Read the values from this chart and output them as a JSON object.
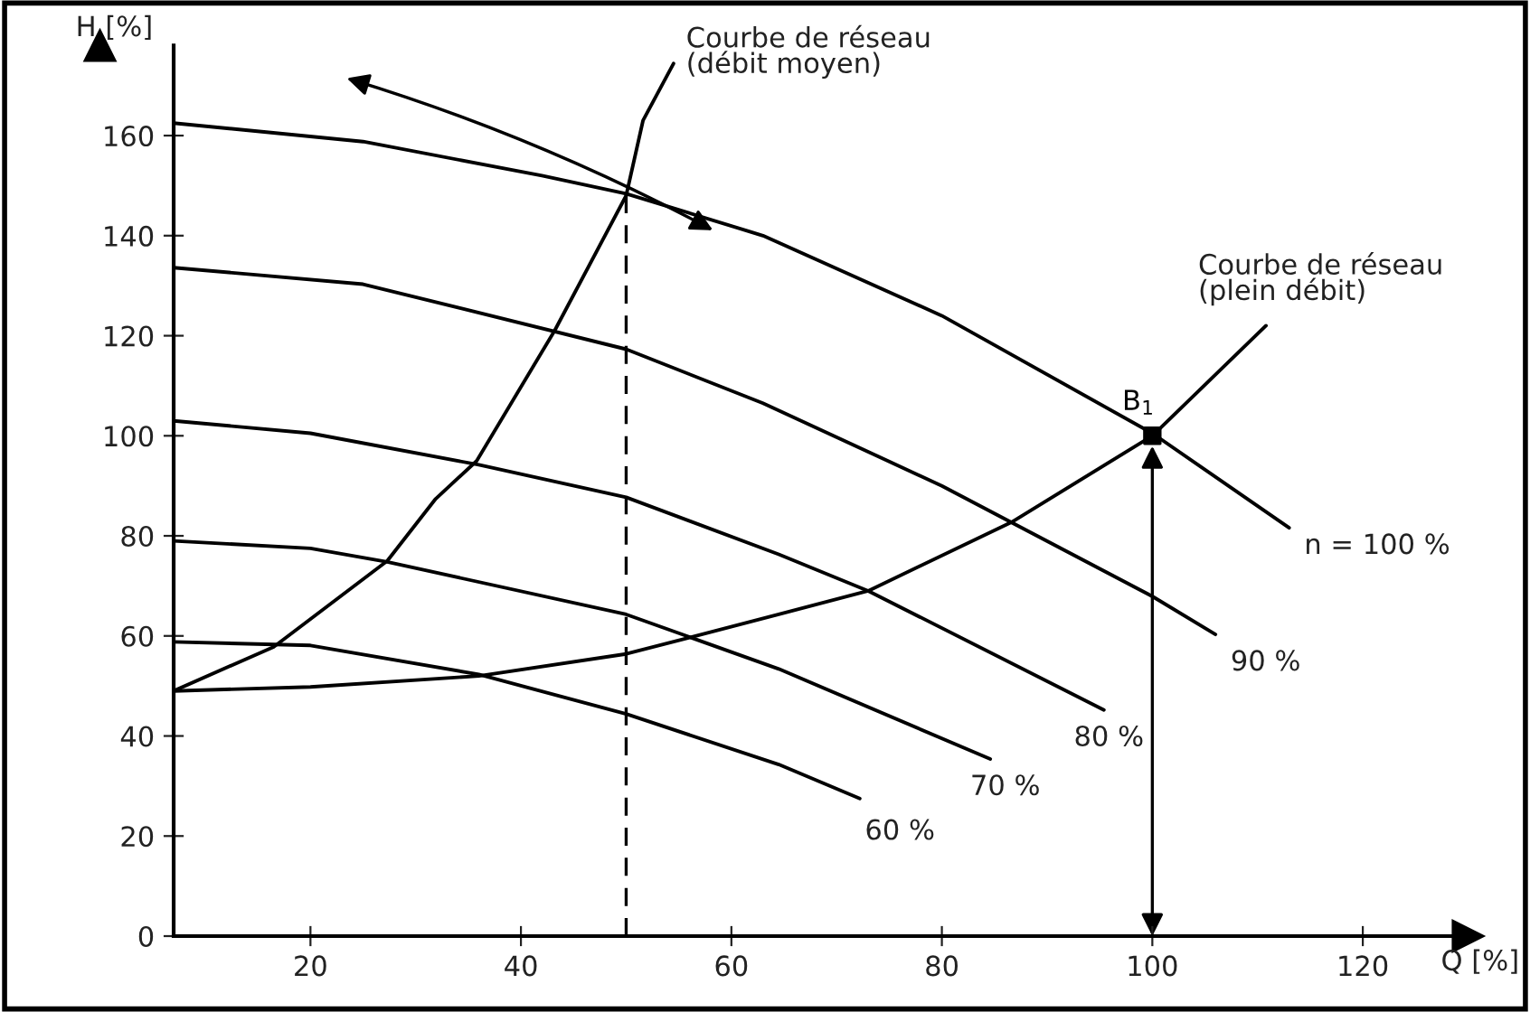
{
  "chart_data": {
    "type": "line",
    "xlabel": "Q [%]",
    "ylabel": "H [%]",
    "xlim": [
      7,
      130
    ],
    "ylim": [
      0,
      178
    ],
    "xticks": [
      20,
      40,
      60,
      80,
      100,
      120
    ],
    "yticks": [
      0,
      20,
      40,
      60,
      80,
      100,
      120,
      140,
      160
    ],
    "grid": false,
    "marker": "none",
    "line_style": "solid",
    "series": [
      {
        "name": "n = 100 %",
        "color": "#000000",
        "x": [
          7,
          25,
          42,
          50,
          63,
          80,
          100,
          113
        ],
        "values": [
          162.5,
          158.8,
          152,
          148.4,
          140,
          124,
          100.5,
          81.6
        ]
      },
      {
        "name": "90 %",
        "color": "#000000",
        "x": [
          7,
          25,
          50,
          63,
          80,
          100,
          106
        ],
        "values": [
          133.6,
          130.3,
          117.3,
          106.5,
          90,
          67.9,
          60.3
        ]
      },
      {
        "name": "80 %",
        "color": "#000000",
        "x": [
          7,
          20,
          36,
          50,
          64.5,
          73,
          95.4
        ],
        "values": [
          103,
          100.5,
          94.2,
          87.7,
          76.3,
          69,
          45.2
        ]
      },
      {
        "name": "70 %",
        "color": "#000000",
        "x": [
          7,
          20,
          27.3,
          50,
          64.5,
          84.6
        ],
        "values": [
          79,
          77.5,
          74.8,
          64.3,
          53.4,
          35.4
        ]
      },
      {
        "name": "60 %",
        "color": "#000000",
        "x": [
          7,
          20,
          36,
          50,
          64.5,
          72.2
        ],
        "values": [
          58.8,
          58.1,
          52.3,
          44.4,
          34.3,
          27.5
        ]
      },
      {
        "name": "Courbe de réseau\n(plein débit)",
        "color": "#000000",
        "x": [
          7,
          20,
          36,
          50,
          64.5,
          73,
          86.6,
          100,
          110.8
        ],
        "values": [
          49,
          49.8,
          52,
          56.4,
          64.3,
          69,
          82.7,
          100,
          122
        ]
      },
      {
        "name": "Courbe de réseau\n(débit moyen)",
        "color": "#000000",
        "x": [
          7,
          16.5,
          27.3,
          31.9,
          35.8,
          43.2,
          50,
          51.6,
          54.5
        ],
        "values": [
          49,
          57.8,
          75,
          87.4,
          95,
          121,
          148,
          163,
          174.4
        ]
      },
      {
        "type": "line",
        "color": "#000000",
        "line_style": "dashed",
        "x": [
          50,
          50
        ],
        "values": [
          0,
          148
        ]
      },
      {
        "type": "scatter",
        "color": "#000000",
        "marker": "square",
        "x": [
          100
        ],
        "values": [
          100
        ]
      }
    ],
    "annotations": [
      {
        "text": "B$_{1}$",
        "x": 100,
        "y": 100
      }
    ]
  }
}
